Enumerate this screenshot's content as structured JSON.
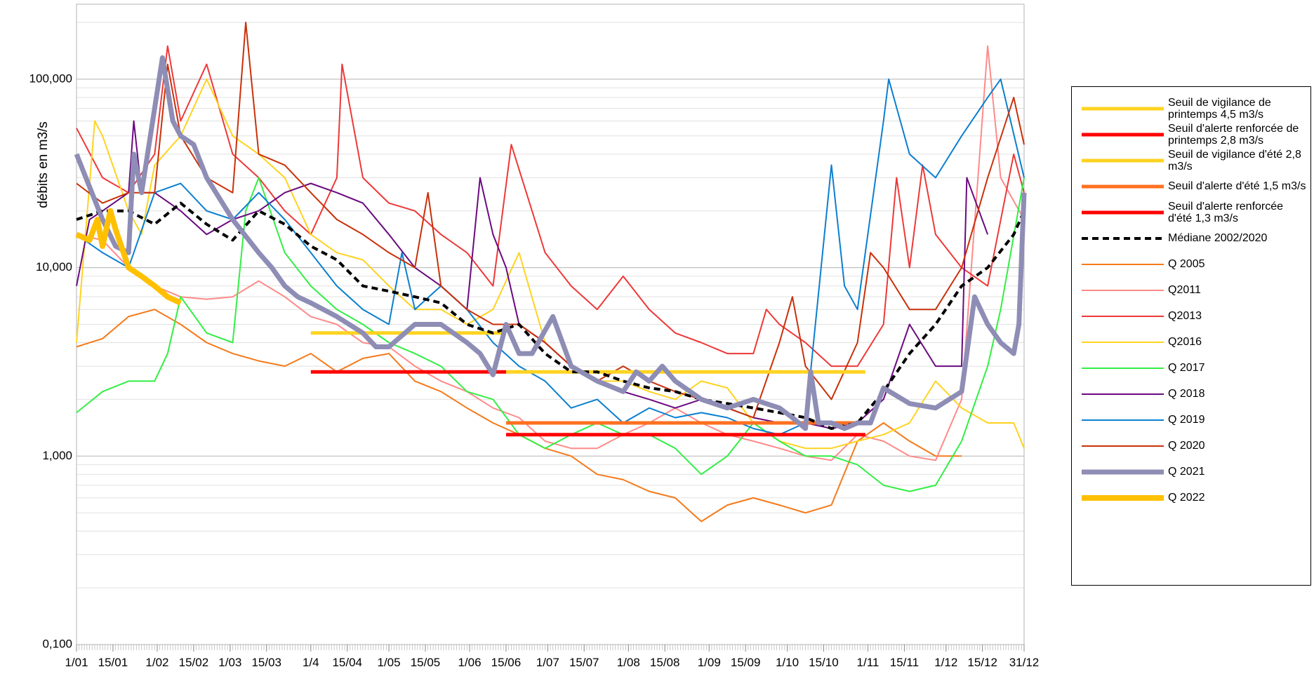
{
  "chart_data": {
    "type": "line",
    "y_axis_label": "débits en m3/s",
    "log_scale": true,
    "grid": true,
    "minor_grid": true,
    "legend": "right",
    "xlim": [
      0,
      364
    ],
    "ylim": [
      0.1,
      250
    ],
    "yticks": [
      {
        "value": 0.1,
        "label": "0,100"
      },
      {
        "value": 1,
        "label": "1,000"
      },
      {
        "value": 10,
        "label": "10,000"
      },
      {
        "value": 100,
        "label": "100,000"
      }
    ],
    "xticks": [
      {
        "value": 0,
        "label": "1/01"
      },
      {
        "value": 14,
        "label": "15/01"
      },
      {
        "value": 31,
        "label": "1/02"
      },
      {
        "value": 45,
        "label": "15/02"
      },
      {
        "value": 59,
        "label": "1/03"
      },
      {
        "value": 73,
        "label": "15/03"
      },
      {
        "value": 90,
        "label": "1/4"
      },
      {
        "value": 104,
        "label": "15/04"
      },
      {
        "value": 120,
        "label": "1/05"
      },
      {
        "value": 134,
        "label": "15/05"
      },
      {
        "value": 151,
        "label": "1/06"
      },
      {
        "value": 165,
        "label": "15/06"
      },
      {
        "value": 181,
        "label": "1/07"
      },
      {
        "value": 195,
        "label": "15/07"
      },
      {
        "value": 212,
        "label": "1/08"
      },
      {
        "value": 226,
        "label": "15/08"
      },
      {
        "value": 243,
        "label": "1/09"
      },
      {
        "value": 257,
        "label": "15/09"
      },
      {
        "value": 273,
        "label": "1/10"
      },
      {
        "value": 287,
        "label": "15/10"
      },
      {
        "value": 304,
        "label": "1/11"
      },
      {
        "value": 318,
        "label": "15/11"
      },
      {
        "value": 334,
        "label": "1/12"
      },
      {
        "value": 348,
        "label": "15/12"
      },
      {
        "value": 364,
        "label": "31/12"
      }
    ],
    "series": [
      {
        "name": "Seuil de vigilance de printemps 4,5 m3/s",
        "color": "#ffd320",
        "width": 5,
        "x": [
          90,
          165
        ],
        "values": [
          4.5,
          4.5
        ]
      },
      {
        "name": "Seuil d'alerte renforcée de printemps 2,8 m3/s",
        "color": "#ff0000",
        "width": 5,
        "x": [
          90,
          165
        ],
        "values": [
          2.8,
          2.8
        ]
      },
      {
        "name": "Seuil de vigilance d'été 2,8 m3/s",
        "color": "#ffd320",
        "width": 5,
        "x": [
          165,
          303
        ],
        "values": [
          2.8,
          2.8
        ]
      },
      {
        "name": "Seuil d'alerte d'été 1,5 m3/s",
        "color": "#ff7021",
        "width": 5,
        "x": [
          165,
          303
        ],
        "values": [
          1.5,
          1.5
        ]
      },
      {
        "name": "Seuil d'alerte renforcée d'été 1,3 m3/s",
        "color": "#ff0000",
        "width": 5,
        "x": [
          165,
          303
        ],
        "values": [
          1.3,
          1.3
        ]
      },
      {
        "name": "Médiane 2002/2020",
        "color": "#000000",
        "width": 4,
        "dashed": true,
        "x": [
          0,
          10,
          20,
          30,
          40,
          50,
          60,
          70,
          80,
          90,
          100,
          110,
          120,
          130,
          140,
          150,
          160,
          170,
          180,
          190,
          200,
          210,
          220,
          230,
          240,
          250,
          260,
          270,
          280,
          290,
          300,
          310,
          320,
          330,
          340,
          350,
          360,
          364
        ],
        "values": [
          18,
          20,
          20,
          17,
          22,
          17,
          14,
          20,
          17,
          13,
          11,
          8,
          7.5,
          7,
          6.5,
          5,
          4.5,
          5,
          3.5,
          2.8,
          2.8,
          2.5,
          2.3,
          2.2,
          2,
          1.9,
          1.8,
          1.7,
          1.6,
          1.4,
          1.5,
          2.2,
          3.5,
          5,
          8,
          10,
          15,
          20
        ]
      },
      {
        "name": "Q 2005",
        "color": "#f57a1a",
        "width": 2,
        "x": [
          0,
          10,
          20,
          30,
          40,
          50,
          60,
          70,
          80,
          90,
          100,
          110,
          120,
          130,
          140,
          150,
          160,
          170,
          180,
          190,
          200,
          210,
          220,
          230,
          240,
          250,
          260,
          270,
          280,
          290,
          300,
          310,
          320,
          330,
          340
        ],
        "values": [
          3.8,
          4.2,
          5.5,
          6,
          5,
          4,
          3.5,
          3.2,
          3,
          3.5,
          2.8,
          3.3,
          3.5,
          2.5,
          2.2,
          1.8,
          1.5,
          1.3,
          1.1,
          1,
          0.8,
          0.75,
          0.65,
          0.6,
          0.45,
          0.55,
          0.6,
          0.55,
          0.5,
          0.55,
          1.2,
          1.5,
          1.2,
          1,
          1
        ]
      },
      {
        "name": "Q2011",
        "color": "#ff8a8a",
        "width": 2,
        "x": [
          0,
          10,
          20,
          30,
          40,
          50,
          60,
          70,
          80,
          90,
          100,
          110,
          120,
          130,
          140,
          150,
          160,
          170,
          180,
          190,
          200,
          210,
          220,
          230,
          240,
          250,
          260,
          270,
          280,
          290,
          300,
          310,
          320,
          330,
          340,
          350,
          355,
          364
        ],
        "values": [
          15,
          14,
          10,
          8,
          7,
          6.8,
          7,
          8.5,
          7,
          5.5,
          5,
          4,
          3.8,
          3,
          2.5,
          2.2,
          1.8,
          1.6,
          1.2,
          1.1,
          1.1,
          1.3,
          1.5,
          1.8,
          1.5,
          1.3,
          1.2,
          1.1,
          1,
          0.95,
          1.3,
          1.2,
          1,
          0.95,
          2,
          150,
          30,
          18
        ]
      },
      {
        "name": "Q2013",
        "color": "#ee3838",
        "width": 2,
        "x": [
          0,
          10,
          20,
          30,
          35,
          40,
          50,
          60,
          70,
          80,
          90,
          100,
          102,
          110,
          120,
          130,
          140,
          150,
          160,
          167,
          175,
          180,
          190,
          200,
          210,
          220,
          230,
          240,
          250,
          260,
          265,
          270,
          280,
          290,
          300,
          310,
          315,
          320,
          325,
          330,
          340,
          350,
          360,
          364
        ],
        "values": [
          55,
          30,
          25,
          40,
          150,
          60,
          120,
          40,
          30,
          20,
          15,
          30,
          120,
          30,
          22,
          20,
          15,
          12,
          8,
          45,
          20,
          12,
          8,
          6,
          9,
          6,
          4.5,
          4,
          3.5,
          3.5,
          6,
          5,
          4,
          3,
          3,
          5,
          30,
          10,
          35,
          15,
          10,
          8,
          40,
          25
        ]
      },
      {
        "name": "Q2016",
        "color": "#ffd320",
        "width": 2,
        "x": [
          0,
          7,
          10,
          20,
          25,
          30,
          40,
          50,
          60,
          70,
          80,
          90,
          100,
          110,
          120,
          130,
          140,
          150,
          160,
          170,
          180,
          190,
          200,
          210,
          220,
          230,
          240,
          250,
          260,
          270,
          280,
          290,
          300,
          310,
          320,
          330,
          340,
          350,
          360,
          364
        ],
        "values": [
          4,
          60,
          50,
          20,
          15,
          35,
          50,
          100,
          50,
          40,
          30,
          15,
          12,
          11,
          8,
          6,
          6,
          5,
          6,
          12,
          4,
          3,
          2.5,
          2.5,
          2.2,
          2,
          2.5,
          2.3,
          1.5,
          1.2,
          1.1,
          1.1,
          1.2,
          1.3,
          1.5,
          2.5,
          1.8,
          1.5,
          1.5,
          1.1
        ]
      },
      {
        "name": "Q 2017",
        "color": "#33ee44",
        "width": 2,
        "x": [
          0,
          10,
          20,
          30,
          35,
          40,
          50,
          60,
          65,
          70,
          80,
          90,
          100,
          110,
          120,
          130,
          140,
          150,
          160,
          170,
          180,
          190,
          200,
          210,
          220,
          230,
          240,
          250,
          260,
          270,
          280,
          290,
          300,
          310,
          320,
          330,
          340,
          350,
          355,
          364
        ],
        "values": [
          1.7,
          2.2,
          2.5,
          2.5,
          3.5,
          7,
          4.5,
          4,
          20,
          30,
          12,
          8,
          6,
          5,
          4,
          3.5,
          3,
          2.2,
          2,
          1.3,
          1.1,
          1.3,
          1.5,
          1.3,
          1.3,
          1.1,
          0.8,
          1,
          1.5,
          1.2,
          1,
          1,
          0.9,
          0.7,
          0.65,
          0.7,
          1.2,
          3,
          6,
          30
        ]
      },
      {
        "name": "Q 2018",
        "color": "#6a0a80",
        "width": 2,
        "x": [
          0,
          5,
          10,
          20,
          22,
          25,
          30,
          40,
          50,
          60,
          70,
          80,
          90,
          100,
          110,
          120,
          130,
          140,
          150,
          155,
          160,
          165,
          170,
          180,
          190,
          200,
          210,
          220,
          230,
          240,
          250,
          260,
          270,
          280,
          290,
          300,
          310,
          320,
          330,
          340,
          342,
          350
        ],
        "values": [
          8,
          18,
          20,
          25,
          60,
          25,
          25,
          20,
          15,
          18,
          20,
          25,
          28,
          25,
          22,
          15,
          10,
          8,
          6,
          30,
          15,
          10,
          5,
          4,
          3,
          2.5,
          2.2,
          2,
          1.8,
          2,
          1.8,
          1.6,
          1.5,
          1.5,
          1.4,
          1.5,
          2,
          5,
          3,
          3,
          30,
          15
        ]
      },
      {
        "name": "Q 2019",
        "color": "#0a7fd0",
        "width": 2,
        "x": [
          0,
          10,
          20,
          30,
          40,
          50,
          60,
          70,
          80,
          90,
          100,
          110,
          120,
          125,
          130,
          140,
          150,
          160,
          170,
          180,
          190,
          200,
          210,
          220,
          230,
          240,
          250,
          260,
          270,
          280,
          290,
          295,
          300,
          310,
          312,
          320,
          330,
          340,
          350,
          355,
          364
        ],
        "values": [
          15,
          12,
          10,
          25,
          28,
          20,
          18,
          25,
          18,
          12,
          8,
          6,
          5,
          12,
          6,
          8,
          6,
          4,
          3,
          2.5,
          1.8,
          2,
          1.5,
          1.8,
          1.6,
          1.7,
          1.6,
          1.4,
          1.3,
          1.5,
          35,
          8,
          6,
          60,
          100,
          40,
          30,
          50,
          80,
          100,
          30
        ]
      },
      {
        "name": "Q 2020",
        "color": "#c9310a",
        "width": 2,
        "x": [
          0,
          10,
          20,
          30,
          35,
          40,
          50,
          60,
          65,
          70,
          80,
          90,
          100,
          110,
          120,
          130,
          135,
          140,
          150,
          160,
          170,
          180,
          190,
          200,
          210,
          220,
          230,
          240,
          250,
          260,
          270,
          275,
          280,
          290,
          300,
          305,
          310,
          320,
          330,
          340,
          350,
          360,
          364
        ],
        "values": [
          28,
          22,
          25,
          25,
          120,
          50,
          30,
          25,
          200,
          40,
          35,
          25,
          18,
          15,
          12,
          10,
          25,
          8,
          6,
          5,
          5,
          4,
          3,
          2.5,
          3,
          2.5,
          2.2,
          2,
          1.8,
          1.6,
          4,
          7,
          3,
          2,
          4,
          12,
          10,
          6,
          6,
          10,
          30,
          80,
          45
        ]
      },
      {
        "name": "Q 2021",
        "color": "#8e8db5",
        "width": 7,
        "x": [
          0,
          10,
          15,
          20,
          22,
          25,
          30,
          33,
          37,
          40,
          45,
          50,
          60,
          70,
          75,
          80,
          85,
          90,
          100,
          110,
          115,
          120,
          130,
          140,
          150,
          155,
          160,
          165,
          170,
          175,
          183,
          190,
          200,
          210,
          215,
          220,
          225,
          230,
          240,
          250,
          260,
          270,
          275,
          280,
          282,
          285,
          290,
          295,
          300,
          305,
          310,
          320,
          330,
          340,
          345,
          350,
          355,
          360,
          362,
          364
        ],
        "values": [
          40,
          18,
          13,
          12,
          40,
          25,
          70,
          130,
          60,
          50,
          45,
          30,
          18,
          12,
          10,
          8,
          7,
          6.5,
          5.5,
          4.5,
          3.8,
          3.8,
          5,
          5,
          4,
          3.5,
          2.7,
          5,
          3.5,
          3.5,
          5.5,
          3,
          2.5,
          2.2,
          2.8,
          2.5,
          3,
          2.5,
          2,
          1.8,
          2,
          1.8,
          1.6,
          1.4,
          2.8,
          1.5,
          1.5,
          1.4,
          1.5,
          1.5,
          2.3,
          1.9,
          1.8,
          2.2,
          7,
          5,
          4,
          3.5,
          5,
          25
        ]
      },
      {
        "name": "Q 2022",
        "color": "#ffc000",
        "width": 8,
        "x": [
          0,
          5,
          8,
          10,
          13,
          15,
          20,
          25,
          30,
          35,
          40
        ],
        "values": [
          15,
          14,
          18,
          13,
          20,
          16,
          10,
          9,
          8,
          7,
          6.5
        ]
      }
    ]
  }
}
